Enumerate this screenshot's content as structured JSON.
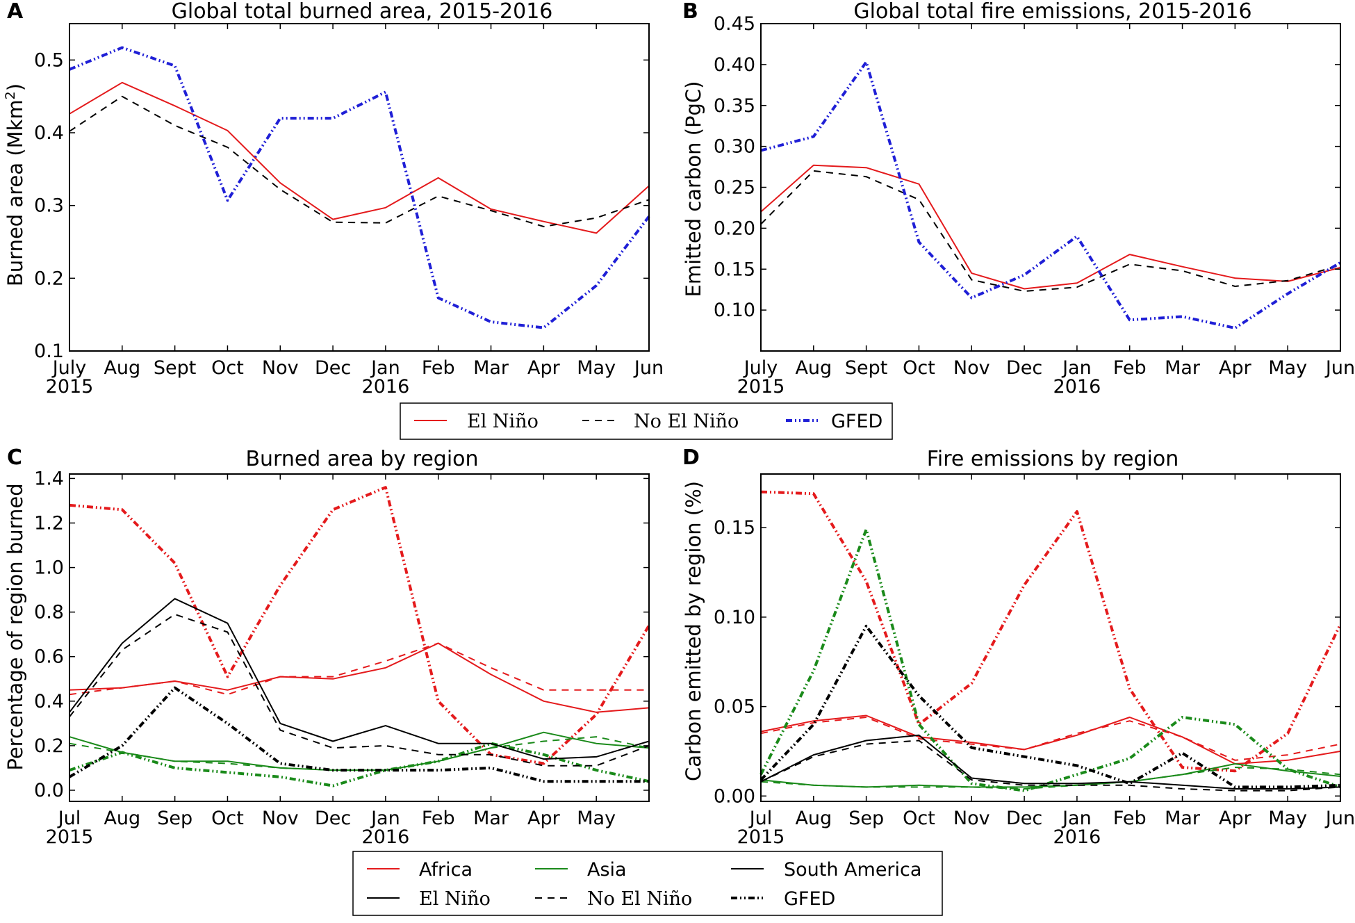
{
  "figure": {
    "legend_top": {
      "items": [
        {
          "label": "El Niño",
          "color": "#e41a1c",
          "style": "solid"
        },
        {
          "label": "No El Niño",
          "color": "#000000",
          "style": "dashed"
        },
        {
          "label": "GFED",
          "color": "#1f1fd6",
          "style": "dashdot"
        }
      ]
    },
    "legend_bottom": {
      "row1": [
        {
          "label": "Africa",
          "color": "#e41a1c"
        },
        {
          "label": "Asia",
          "color": "#1a8a1a"
        },
        {
          "label": "South America",
          "color": "#000000"
        }
      ],
      "row2": [
        {
          "label": "El Niño",
          "style": "solid"
        },
        {
          "label": "No El Niño",
          "style": "dashed"
        },
        {
          "label": "GFED",
          "style": "dashdot"
        }
      ]
    }
  },
  "chart_data": [
    {
      "panel": "A",
      "type": "line",
      "title": "Global total burned area, 2015-2016",
      "ylabel": "Burned area (Mkm²)",
      "xlabel": "",
      "x": [
        "July\n2015",
        "Aug",
        "Sept",
        "Oct",
        "Nov",
        "Dec",
        "Jan\n2016",
        "Feb",
        "Mar",
        "Apr",
        "May",
        "Jun"
      ],
      "ylim": [
        0.1,
        0.55
      ],
      "yticks": [
        "0.1",
        "0.2",
        "0.3",
        "0.4",
        "0.5"
      ],
      "series": [
        {
          "name": "El Niño",
          "color": "#e41a1c",
          "style": "solid",
          "values": [
            0.426,
            0.469,
            0.437,
            0.403,
            0.331,
            0.281,
            0.297,
            0.338,
            0.295,
            0.278,
            0.262,
            0.327
          ]
        },
        {
          "name": "No El Niño",
          "color": "#000000",
          "style": "dashed",
          "values": [
            0.402,
            0.45,
            0.41,
            0.38,
            0.322,
            0.277,
            0.276,
            0.313,
            0.293,
            0.271,
            0.283,
            0.308
          ]
        },
        {
          "name": "GFED",
          "color": "#1f1fd6",
          "style": "dashdot",
          "values": [
            0.487,
            0.517,
            0.492,
            0.307,
            0.42,
            0.42,
            0.456,
            0.173,
            0.14,
            0.132,
            0.19,
            0.285
          ]
        }
      ]
    },
    {
      "panel": "B",
      "type": "line",
      "title": "Global total fire emissions, 2015-2016",
      "ylabel": "Emitted carbon (PgC)",
      "xlabel": "",
      "x": [
        "July\n2015",
        "Aug",
        "Sept",
        "Oct",
        "Nov",
        "Dec",
        "Jan\n2016",
        "Feb",
        "Mar",
        "Apr",
        "May",
        "Jun"
      ],
      "ylim": [
        0.05,
        0.45
      ],
      "yticks": [
        "0.10",
        "0.15",
        "0.20",
        "0.25",
        "0.30",
        "0.35",
        "0.40",
        "0.45"
      ],
      "series": [
        {
          "name": "El Niño",
          "color": "#e41a1c",
          "style": "solid",
          "values": [
            0.22,
            0.277,
            0.274,
            0.254,
            0.145,
            0.126,
            0.133,
            0.168,
            0.153,
            0.139,
            0.135,
            0.152
          ]
        },
        {
          "name": "No El Niño",
          "color": "#000000",
          "style": "dashed",
          "values": [
            0.205,
            0.27,
            0.263,
            0.235,
            0.137,
            0.123,
            0.128,
            0.156,
            0.148,
            0.129,
            0.136,
            0.155
          ]
        },
        {
          "name": "GFED",
          "color": "#1f1fd6",
          "style": "dashdot",
          "values": [
            0.295,
            0.312,
            0.403,
            0.183,
            0.115,
            0.143,
            0.19,
            0.088,
            0.092,
            0.078,
            0.12,
            0.158
          ]
        }
      ]
    },
    {
      "panel": "C",
      "type": "line",
      "title": "Burned area by region",
      "ylabel": "Percentage of region burned",
      "xlabel": "",
      "x": [
        "Jul\n2015",
        "Aug",
        "Sep",
        "Oct",
        "Nov",
        "Dec",
        "Jan\n2016",
        "Feb",
        "Mar",
        "Apr",
        "May",
        ""
      ],
      "ylim": [
        -0.05,
        1.42
      ],
      "yticks": [
        "0.0",
        "0.2",
        "0.4",
        "0.6",
        "0.8",
        "1.0",
        "1.2",
        "1.4"
      ],
      "series": [
        {
          "name": "Africa El Niño",
          "color": "#e41a1c",
          "style": "solid",
          "values": [
            0.45,
            0.46,
            0.49,
            0.45,
            0.51,
            0.5,
            0.55,
            0.66,
            0.52,
            0.4,
            0.35,
            0.37
          ]
        },
        {
          "name": "Africa No El Niño",
          "color": "#e41a1c",
          "style": "dashed",
          "values": [
            0.43,
            0.46,
            0.49,
            0.43,
            0.51,
            0.51,
            0.58,
            0.66,
            0.55,
            0.45,
            0.45,
            0.45
          ]
        },
        {
          "name": "Africa GFED",
          "color": "#e41a1c",
          "style": "dashdot",
          "values": [
            1.28,
            1.26,
            1.02,
            0.51,
            0.92,
            1.26,
            1.36,
            0.4,
            0.16,
            0.12,
            0.34,
            0.74
          ]
        },
        {
          "name": "Asia El Niño",
          "color": "#1a8a1a",
          "style": "solid",
          "values": [
            0.24,
            0.17,
            0.13,
            0.13,
            0.1,
            0.09,
            0.09,
            0.13,
            0.19,
            0.26,
            0.21,
            0.19
          ]
        },
        {
          "name": "Asia No El Niño",
          "color": "#1a8a1a",
          "style": "dashed",
          "values": [
            0.21,
            0.17,
            0.13,
            0.12,
            0.1,
            0.09,
            0.09,
            0.13,
            0.19,
            0.22,
            0.24,
            0.19
          ]
        },
        {
          "name": "Asia GFED",
          "color": "#1a8a1a",
          "style": "dashdot",
          "values": [
            0.09,
            0.17,
            0.1,
            0.08,
            0.06,
            0.02,
            0.09,
            0.13,
            0.21,
            0.16,
            0.09,
            0.04
          ]
        },
        {
          "name": "South America El Niño",
          "color": "#000000",
          "style": "solid",
          "values": [
            0.35,
            0.66,
            0.86,
            0.75,
            0.3,
            0.22,
            0.29,
            0.21,
            0.21,
            0.14,
            0.15,
            0.22
          ]
        },
        {
          "name": "South America No El Niño",
          "color": "#000000",
          "style": "dashed",
          "values": [
            0.33,
            0.63,
            0.79,
            0.71,
            0.27,
            0.19,
            0.2,
            0.16,
            0.16,
            0.11,
            0.11,
            0.2
          ]
        },
        {
          "name": "South America GFED",
          "color": "#000000",
          "style": "dashdot",
          "values": [
            0.06,
            0.2,
            0.46,
            0.3,
            0.12,
            0.09,
            0.09,
            0.09,
            0.1,
            0.04,
            0.04,
            0.04
          ]
        }
      ]
    },
    {
      "panel": "D",
      "type": "line",
      "title": "Fire emissions by region",
      "ylabel": "Carbon emitted by region (%)",
      "xlabel": "",
      "x": [
        "Jul\n2015",
        "Aug",
        "Sep",
        "Oct",
        "Nov",
        "Dec",
        "Jan\n2016",
        "Feb",
        "Mar",
        "Apr",
        "May",
        "Jun"
      ],
      "ylim": [
        -0.003,
        0.18
      ],
      "yticks": [
        "0.00",
        "0.05",
        "0.10",
        "0.15"
      ],
      "series": [
        {
          "name": "Africa El Niño",
          "color": "#e41a1c",
          "style": "solid",
          "values": [
            0.036,
            0.042,
            0.045,
            0.033,
            0.03,
            0.026,
            0.034,
            0.044,
            0.033,
            0.018,
            0.02,
            0.025
          ]
        },
        {
          "name": "Africa No El Niño",
          "color": "#e41a1c",
          "style": "dashed",
          "values": [
            0.035,
            0.041,
            0.044,
            0.032,
            0.029,
            0.026,
            0.035,
            0.042,
            0.033,
            0.02,
            0.023,
            0.029
          ]
        },
        {
          "name": "Africa GFED",
          "color": "#e41a1c",
          "style": "dashdot",
          "values": [
            0.17,
            0.169,
            0.12,
            0.04,
            0.063,
            0.118,
            0.159,
            0.06,
            0.016,
            0.014,
            0.035,
            0.096
          ]
        },
        {
          "name": "Asia El Niño",
          "color": "#1a8a1a",
          "style": "solid",
          "values": [
            0.009,
            0.006,
            0.005,
            0.006,
            0.005,
            0.005,
            0.006,
            0.008,
            0.012,
            0.018,
            0.014,
            0.011
          ]
        },
        {
          "name": "Asia No El Niño",
          "color": "#1a8a1a",
          "style": "dashed",
          "values": [
            0.008,
            0.006,
            0.005,
            0.005,
            0.005,
            0.004,
            0.006,
            0.008,
            0.012,
            0.016,
            0.015,
            0.012
          ]
        },
        {
          "name": "Asia GFED",
          "color": "#1a8a1a",
          "style": "dashdot",
          "values": [
            0.012,
            0.07,
            0.149,
            0.04,
            0.007,
            0.003,
            0.012,
            0.021,
            0.044,
            0.04,
            0.015,
            0.005
          ]
        },
        {
          "name": "South America El Niño",
          "color": "#000000",
          "style": "solid",
          "values": [
            0.008,
            0.023,
            0.031,
            0.034,
            0.01,
            0.007,
            0.007,
            0.008,
            0.006,
            0.004,
            0.004,
            0.005
          ]
        },
        {
          "name": "South America No El Niño",
          "color": "#000000",
          "style": "dashed",
          "values": [
            0.008,
            0.022,
            0.029,
            0.031,
            0.009,
            0.006,
            0.006,
            0.006,
            0.004,
            0.003,
            0.003,
            0.005
          ]
        },
        {
          "name": "South America GFED",
          "color": "#000000",
          "style": "dashdot",
          "values": [
            0.009,
            0.04,
            0.095,
            0.056,
            0.027,
            0.022,
            0.017,
            0.007,
            0.024,
            0.005,
            0.005,
            0.006
          ]
        }
      ]
    }
  ]
}
